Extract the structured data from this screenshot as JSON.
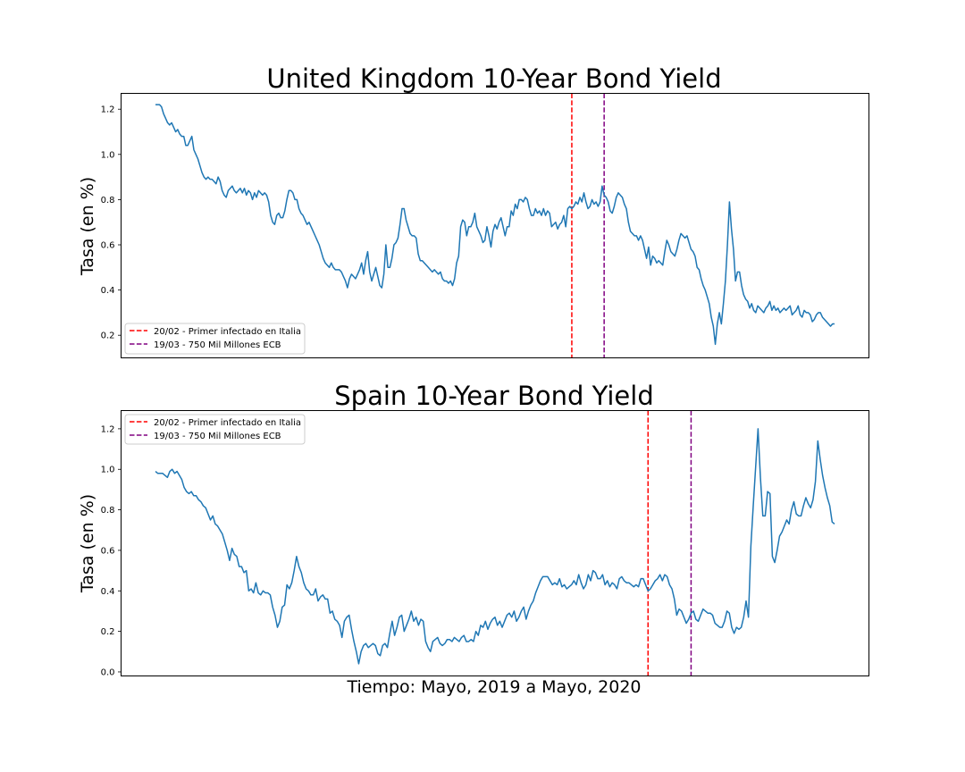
{
  "colors": {
    "series": "#1f77b4",
    "infected_line": "#ff0000",
    "ecb_line": "#800080",
    "axis": "#000000",
    "legend_border": "#cccccc"
  },
  "figure": {
    "xlabel": "Tiempo: Mayo, 2019 a Mayo, 2020"
  },
  "chart_data": [
    {
      "type": "line",
      "title": "United Kingdom 10-Year Bond Yield",
      "ylabel": "Tasa (en %)",
      "xlabel": "",
      "ylim": [
        0.1,
        1.27
      ],
      "y_ticks": [
        "0.2",
        "0.4",
        "0.6",
        "0.8",
        "1.0",
        "1.2"
      ],
      "x_ticks_shown": false,
      "legend_position": "lower-left",
      "legend": [
        {
          "label": "20/02 - Primer infectado en Italia",
          "color": "#ff0000",
          "style": "dashed"
        },
        {
          "label": "19/03 - 750 Mil Millones ECB",
          "color": "#800080",
          "style": "dashed"
        }
      ],
      "vlines": [
        {
          "label": "20/02 - Primer infectado en Italia",
          "index": 206,
          "color": "#ff0000"
        },
        {
          "label": "19/03 - 750 Mil Millones ECB",
          "index": 222,
          "color": "#800080"
        }
      ],
      "series": [
        {
          "values": [
            1.22,
            1.22,
            1.22,
            1.21,
            1.18,
            1.16,
            1.14,
            1.13,
            1.14,
            1.12,
            1.1,
            1.11,
            1.09,
            1.08,
            1.08,
            1.04,
            1.04,
            1.06,
            1.08,
            1.02,
            1.0,
            0.98,
            0.95,
            0.92,
            0.9,
            0.89,
            0.9,
            0.89,
            0.89,
            0.88,
            0.87,
            0.9,
            0.88,
            0.84,
            0.82,
            0.81,
            0.84,
            0.85,
            0.86,
            0.84,
            0.83,
            0.84,
            0.85,
            0.83,
            0.85,
            0.82,
            0.84,
            0.83,
            0.8,
            0.83,
            0.81,
            0.84,
            0.83,
            0.82,
            0.83,
            0.82,
            0.79,
            0.73,
            0.7,
            0.69,
            0.73,
            0.74,
            0.72,
            0.72,
            0.75,
            0.8,
            0.84,
            0.84,
            0.83,
            0.8,
            0.8,
            0.76,
            0.74,
            0.73,
            0.71,
            0.69,
            0.7,
            0.68,
            0.66,
            0.64,
            0.62,
            0.6,
            0.57,
            0.54,
            0.52,
            0.51,
            0.5,
            0.52,
            0.5,
            0.49,
            0.49,
            0.49,
            0.48,
            0.46,
            0.44,
            0.41,
            0.45,
            0.47,
            0.46,
            0.45,
            0.47,
            0.49,
            0.52,
            0.47,
            0.53,
            0.57,
            0.48,
            0.44,
            0.47,
            0.5,
            0.46,
            0.42,
            0.41,
            0.47,
            0.6,
            0.5,
            0.5,
            0.54,
            0.6,
            0.61,
            0.63,
            0.69,
            0.76,
            0.76,
            0.71,
            0.68,
            0.65,
            0.64,
            0.64,
            0.63,
            0.56,
            0.53,
            0.53,
            0.52,
            0.51,
            0.5,
            0.49,
            0.48,
            0.49,
            0.48,
            0.47,
            0.48,
            0.45,
            0.44,
            0.44,
            0.43,
            0.44,
            0.42,
            0.45,
            0.52,
            0.55,
            0.68,
            0.71,
            0.7,
            0.64,
            0.68,
            0.68,
            0.7,
            0.74,
            0.68,
            0.66,
            0.64,
            0.61,
            0.62,
            0.68,
            0.64,
            0.59,
            0.66,
            0.69,
            0.67,
            0.7,
            0.72,
            0.68,
            0.64,
            0.68,
            0.68,
            0.75,
            0.73,
            0.78,
            0.76,
            0.8,
            0.8,
            0.79,
            0.81,
            0.8,
            0.76,
            0.73,
            0.73,
            0.76,
            0.74,
            0.75,
            0.73,
            0.76,
            0.73,
            0.75,
            0.74,
            0.68,
            0.69,
            0.7,
            0.67,
            0.69,
            0.7,
            0.73,
            0.68,
            0.76,
            0.77,
            0.76,
            0.77,
            0.79,
            0.78,
            0.81,
            0.79,
            0.83,
            0.79,
            0.76,
            0.77,
            0.8,
            0.78,
            0.79,
            0.77,
            0.79,
            0.86,
            0.82,
            0.81,
            0.79,
            0.75,
            0.74,
            0.77,
            0.81,
            0.83,
            0.82,
            0.81,
            0.78,
            0.76,
            0.7,
            0.66,
            0.65,
            0.64,
            0.64,
            0.62,
            0.64,
            0.62,
            0.58,
            0.54,
            0.59,
            0.51,
            0.55,
            0.54,
            0.52,
            0.53,
            0.52,
            0.51,
            0.57,
            0.62,
            0.6,
            0.57,
            0.56,
            0.55,
            0.58,
            0.62,
            0.65,
            0.64,
            0.63,
            0.64,
            0.61,
            0.58,
            0.57,
            0.55,
            0.5,
            0.49,
            0.45,
            0.42,
            0.4,
            0.37,
            0.34,
            0.28,
            0.24,
            0.16,
            0.25,
            0.3,
            0.25,
            0.34,
            0.44,
            0.6,
            0.79,
            0.67,
            0.58,
            0.44,
            0.48,
            0.48,
            0.42,
            0.38,
            0.36,
            0.35,
            0.32,
            0.34,
            0.31,
            0.3,
            0.33,
            0.32,
            0.31,
            0.3,
            0.32,
            0.33,
            0.35,
            0.31,
            0.33,
            0.31,
            0.32,
            0.3,
            0.31,
            0.32,
            0.31,
            0.32,
            0.33,
            0.29,
            0.3,
            0.31,
            0.33,
            0.29,
            0.28,
            0.31,
            0.3,
            0.3,
            0.29,
            0.26,
            0.27,
            0.29,
            0.3,
            0.3,
            0.28,
            0.27,
            0.26,
            0.25,
            0.24,
            0.25,
            0.25
          ]
        }
      ]
    },
    {
      "type": "line",
      "title": "Spain 10-Year Bond Yield",
      "ylabel": "Tasa (en %)",
      "xlabel": "",
      "ylim": [
        -0.02,
        1.29
      ],
      "y_ticks": [
        "0.0",
        "0.2",
        "0.4",
        "0.6",
        "0.8",
        "1.0",
        "1.2"
      ],
      "x_ticks_shown": false,
      "legend_position": "upper-left",
      "legend": [
        {
          "label": "20/02 - Primer infectado en Italia",
          "color": "#ff0000",
          "style": "dashed"
        },
        {
          "label": "19/03 - 750 Mil Millones ECB",
          "color": "#800080",
          "style": "dashed"
        }
      ],
      "vlines": [
        {
          "label": "20/02 - Primer infectado en Italia",
          "index": 206,
          "color": "#ff0000"
        },
        {
          "label": "19/03 - 750 Mil Millones ECB",
          "index": 224,
          "color": "#800080"
        }
      ],
      "series": [
        {
          "values": [
            0.99,
            0.98,
            0.98,
            0.98,
            0.97,
            0.96,
            0.99,
            1.0,
            0.98,
            0.99,
            0.97,
            0.95,
            0.91,
            0.89,
            0.88,
            0.89,
            0.87,
            0.87,
            0.85,
            0.84,
            0.82,
            0.81,
            0.78,
            0.75,
            0.77,
            0.73,
            0.72,
            0.7,
            0.68,
            0.64,
            0.6,
            0.55,
            0.61,
            0.58,
            0.57,
            0.52,
            0.52,
            0.49,
            0.5,
            0.4,
            0.41,
            0.39,
            0.44,
            0.39,
            0.38,
            0.4,
            0.39,
            0.39,
            0.38,
            0.32,
            0.28,
            0.22,
            0.25,
            0.32,
            0.33,
            0.43,
            0.41,
            0.44,
            0.5,
            0.57,
            0.52,
            0.49,
            0.44,
            0.41,
            0.4,
            0.38,
            0.38,
            0.41,
            0.35,
            0.37,
            0.38,
            0.36,
            0.36,
            0.29,
            0.3,
            0.26,
            0.25,
            0.23,
            0.17,
            0.25,
            0.27,
            0.28,
            0.21,
            0.15,
            0.1,
            0.04,
            0.1,
            0.13,
            0.14,
            0.12,
            0.13,
            0.14,
            0.13,
            0.09,
            0.08,
            0.13,
            0.14,
            0.12,
            0.19,
            0.25,
            0.18,
            0.22,
            0.27,
            0.28,
            0.2,
            0.23,
            0.26,
            0.3,
            0.25,
            0.27,
            0.23,
            0.26,
            0.25,
            0.15,
            0.12,
            0.1,
            0.15,
            0.16,
            0.17,
            0.14,
            0.13,
            0.14,
            0.16,
            0.16,
            0.15,
            0.17,
            0.16,
            0.15,
            0.17,
            0.18,
            0.15,
            0.15,
            0.16,
            0.15,
            0.2,
            0.18,
            0.23,
            0.22,
            0.25,
            0.21,
            0.24,
            0.26,
            0.27,
            0.23,
            0.25,
            0.22,
            0.25,
            0.28,
            0.29,
            0.27,
            0.3,
            0.25,
            0.27,
            0.3,
            0.32,
            0.26,
            0.3,
            0.33,
            0.35,
            0.39,
            0.42,
            0.45,
            0.47,
            0.47,
            0.47,
            0.45,
            0.43,
            0.44,
            0.43,
            0.46,
            0.42,
            0.43,
            0.41,
            0.42,
            0.43,
            0.45,
            0.43,
            0.48,
            0.44,
            0.41,
            0.43,
            0.48,
            0.45,
            0.5,
            0.49,
            0.46,
            0.46,
            0.48,
            0.43,
            0.45,
            0.42,
            0.44,
            0.43,
            0.41,
            0.46,
            0.47,
            0.45,
            0.44,
            0.44,
            0.43,
            0.42,
            0.43,
            0.42,
            0.46,
            0.46,
            0.43,
            0.4,
            0.41,
            0.43,
            0.45,
            0.46,
            0.48,
            0.45,
            0.48,
            0.47,
            0.43,
            0.41,
            0.36,
            0.28,
            0.31,
            0.3,
            0.27,
            0.24,
            0.26,
            0.29,
            0.3,
            0.26,
            0.25,
            0.28,
            0.31,
            0.3,
            0.29,
            0.29,
            0.28,
            0.24,
            0.23,
            0.22,
            0.22,
            0.25,
            0.3,
            0.29,
            0.22,
            0.19,
            0.22,
            0.21,
            0.22,
            0.27,
            0.35,
            0.27,
            0.62,
            0.82,
            1.01,
            1.2,
            0.96,
            0.77,
            0.77,
            0.89,
            0.88,
            0.57,
            0.54,
            0.6,
            0.67,
            0.69,
            0.72,
            0.75,
            0.73,
            0.8,
            0.84,
            0.78,
            0.77,
            0.77,
            0.82,
            0.86,
            0.83,
            0.81,
            0.85,
            0.94,
            1.14,
            1.05,
            0.97,
            0.91,
            0.86,
            0.82,
            0.74,
            0.73
          ]
        }
      ]
    }
  ]
}
